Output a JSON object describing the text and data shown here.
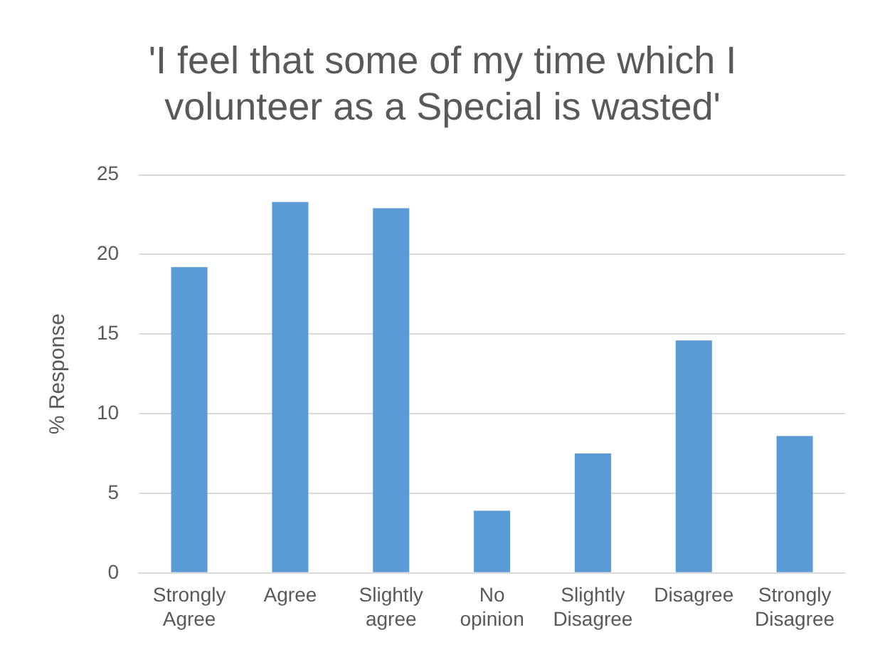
{
  "chart_data": {
    "type": "bar",
    "title": "'I feel that some of my time which I volunteer as a Special is wasted'",
    "ylabel": "% Response",
    "categories": [
      "Strongly Agree",
      "Agree",
      "Slightly agree",
      "No opinion",
      "Slightly Disagree",
      "Disagree",
      "Strongly Disagree"
    ],
    "values": [
      19.2,
      23.3,
      22.9,
      3.9,
      7.5,
      14.6,
      8.6
    ],
    "color": "#5b9bd5",
    "ylim": [
      0,
      25
    ],
    "yticks": [
      0,
      5,
      10,
      15,
      20,
      25
    ],
    "grid": "y",
    "legend": false
  }
}
